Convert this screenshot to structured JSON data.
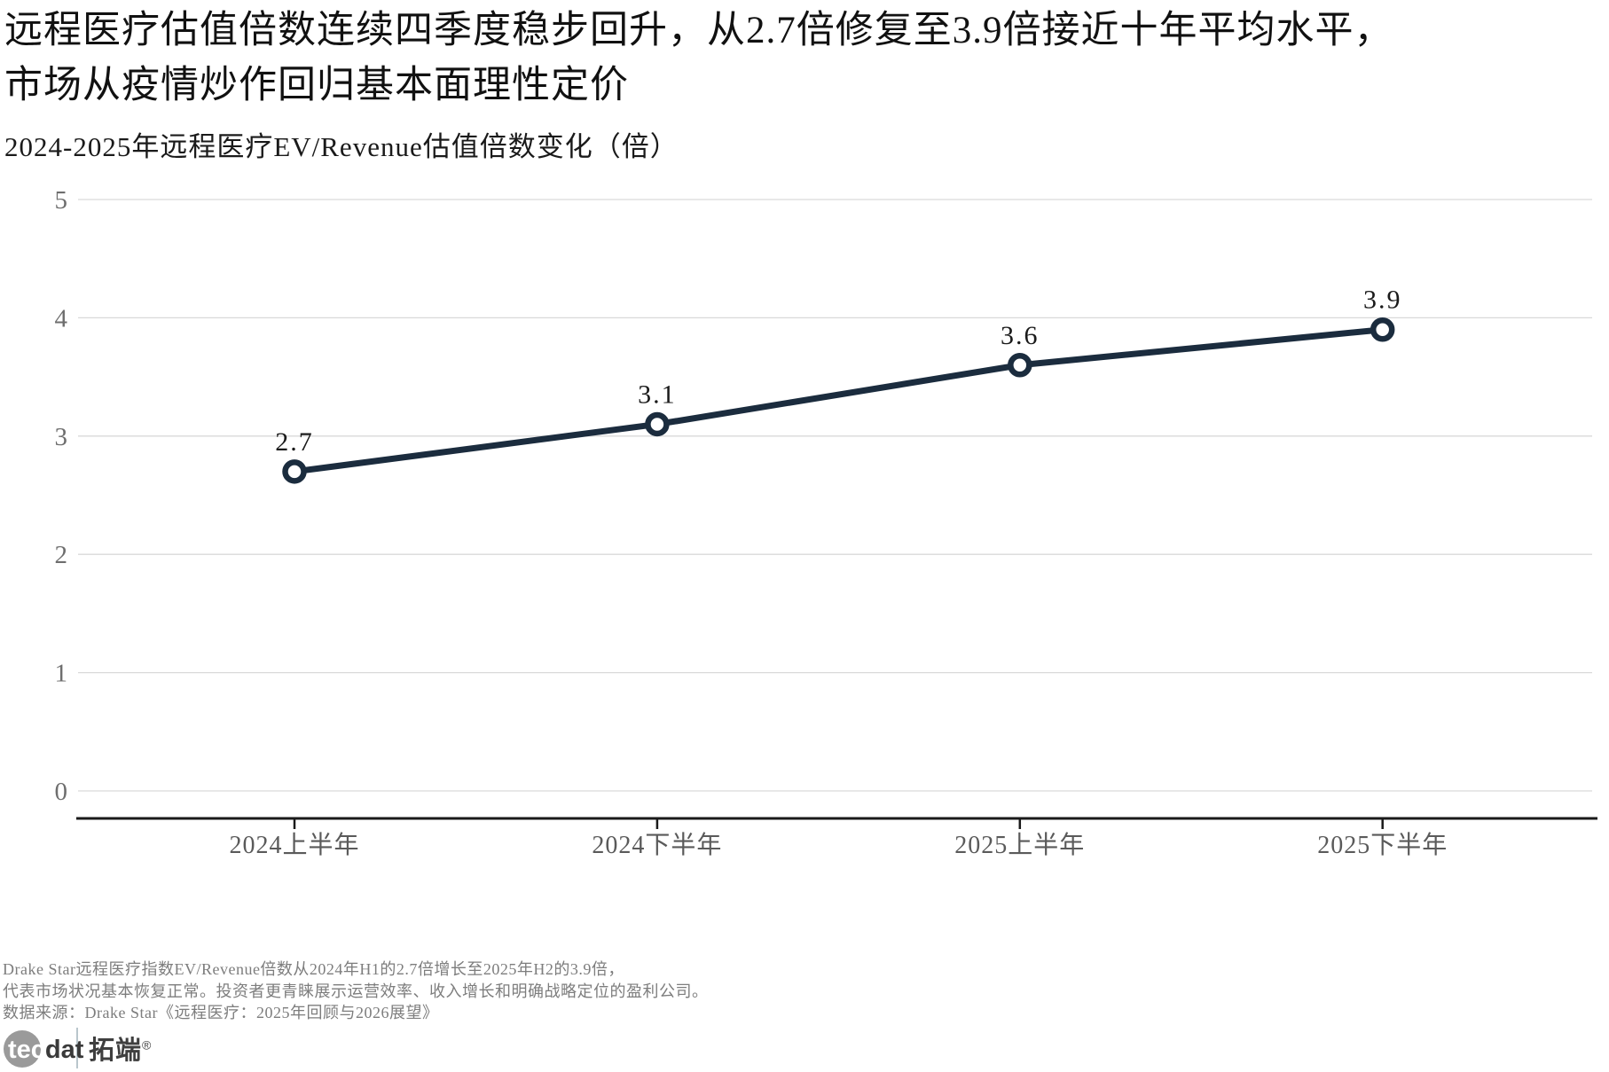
{
  "header": {
    "title_line1": "远程医疗估值倍数连续四季度稳步回升，从2.7倍修复至3.9倍接近十年平均水平，",
    "title_line2": "市场从疫情炒作回归基本面理性定价",
    "subtitle": "2024-2025年远程医疗EV/Revenue估值倍数变化（倍）"
  },
  "chart_data": {
    "type": "line",
    "title": "2024-2025年远程医疗EV/Revenue估值倍数变化（倍）",
    "categories": [
      "2024上半年",
      "2024下半年",
      "2025上半年",
      "2025下半年"
    ],
    "series": [
      {
        "name": "远程医疗EV/Revenue估值倍数",
        "values": [
          2.7,
          3.1,
          3.6,
          3.9
        ]
      }
    ],
    "data_labels": [
      "2.7",
      "3.1",
      "3.6",
      "3.9"
    ],
    "xlabel": "",
    "ylabel": "",
    "ylim": [
      0,
      5
    ],
    "yticks": [
      0,
      1,
      2,
      3,
      4,
      5
    ],
    "grid": true,
    "legend_position": "none",
    "colors": {
      "line": "#1b2c3e",
      "marker_fill": "#ffffff",
      "gridline": "#d9d9d9",
      "axis_line": "#1a1a1a",
      "ytick_label": "#6e6e6e",
      "xtick_label": "#5a5a5a",
      "data_label": "#1a1a1a"
    }
  },
  "footer": {
    "note_line1": "Drake Star远程医疗指数EV/Revenue倍数从2024年H1的2.7倍增长至2025年H2的3.9倍，",
    "note_line2": "代表市场状况基本恢复正常。投资者更青睐展示运营效率、收入增长和明确战略定位的盈利公司。",
    "source_line": "数据来源：Drake Star《远程医疗：2025年回顾与2026展望》"
  },
  "logo": {
    "brand_primary": "tec",
    "brand_secondary": "dat",
    "brand_cn": "拓端",
    "registered_mark": "®"
  }
}
